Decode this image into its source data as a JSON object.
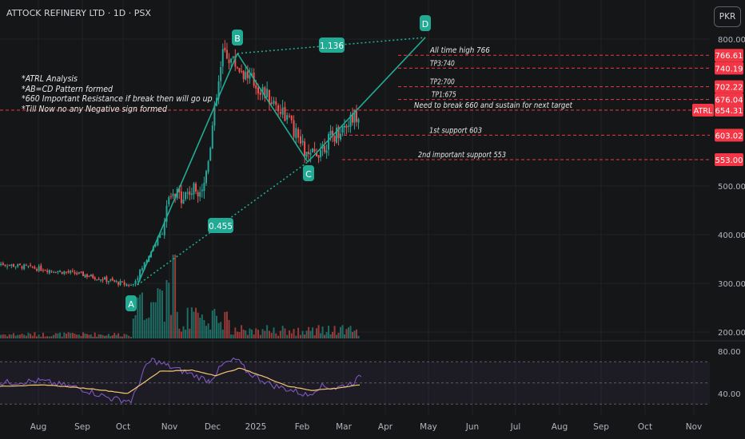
{
  "title": "ATTOCK REFINERY LTD · 1D · PSX",
  "currency_button": "PKR",
  "notes": [
    "*ATRL Analysis",
    "*AB=CD Pattern formed",
    "*660 Important Resistance if break then will go up",
    "*Till Now no any Negative sign formed"
  ],
  "colors": {
    "background": "#151617",
    "bull": "#26a69a",
    "bear": "#ef5350",
    "level_line": "#f23645",
    "pattern": "#22ab94",
    "rsi": "#7e57c2",
    "rsi_ma": "#f7c873"
  },
  "chart_data": {
    "type": "candlestick",
    "symbol": "ATRL",
    "last_price": 654.31,
    "y_axis_ticks": [
      200,
      300,
      400,
      500,
      800
    ],
    "y_axis_labels": [
      "200.00",
      "300.00",
      "400.00",
      "500.00",
      "800.00"
    ],
    "x_axis_labels": [
      "Aug",
      "Sep",
      "Oct",
      "Nov",
      "Dec",
      "2025",
      "Feb",
      "Mar",
      "Apr",
      "May",
      "Jun",
      "Jul",
      "Aug",
      "Sep",
      "Oct",
      "Nov"
    ],
    "price_path": [
      {
        "month": "Jul",
        "close": 340
      },
      {
        "month": "Aug",
        "close": 330
      },
      {
        "month": "Sep",
        "close": 318
      },
      {
        "month": "Oct",
        "close": 295
      },
      {
        "month": "Oct",
        "close": 460
      },
      {
        "month": "Nov",
        "close": 460
      },
      {
        "month": "Dec",
        "close": 775
      },
      {
        "month": "Jan",
        "close": 650
      },
      {
        "month": "Feb",
        "close": 553
      },
      {
        "month": "Mar",
        "close": 654.31
      }
    ],
    "levels": [
      {
        "label": "All time high 766",
        "value": 766.61,
        "badge": "766.61"
      },
      {
        "label": "TP3:740",
        "value": 740.19,
        "badge": "740.19"
      },
      {
        "label": "TP2:700",
        "value": 702.22,
        "badge": "702.22"
      },
      {
        "label": "TP1:675",
        "value": 676.04,
        "badge": "676.04"
      },
      {
        "label": "Need to break 660 and sustain for next target",
        "value": 654.31,
        "badge": "654.31",
        "tag": "ATRL"
      },
      {
        "label": "1st support 603",
        "value": 603.02,
        "badge": "603.02"
      },
      {
        "label": "2nd important support 553",
        "value": 553.0,
        "badge": "553.00"
      }
    ],
    "pattern": {
      "name": "AB=CD",
      "points": [
        {
          "label": "A",
          "date": "Oct",
          "price": 295
        },
        {
          "label": "B",
          "date": "Dec",
          "price": 775
        },
        {
          "label": "C",
          "date": "Feb",
          "price": 553
        },
        {
          "label": "D",
          "date": "May",
          "price": 805
        }
      ],
      "ratios": [
        {
          "label": "0.455",
          "between": "A-C"
        },
        {
          "label": "1.136",
          "between": "B-D"
        }
      ]
    },
    "rsi": {
      "y_axis_labels": [
        "80.00",
        "40.00"
      ],
      "upper_band": 70,
      "middle_band": 50,
      "lower_band": 30
    }
  }
}
